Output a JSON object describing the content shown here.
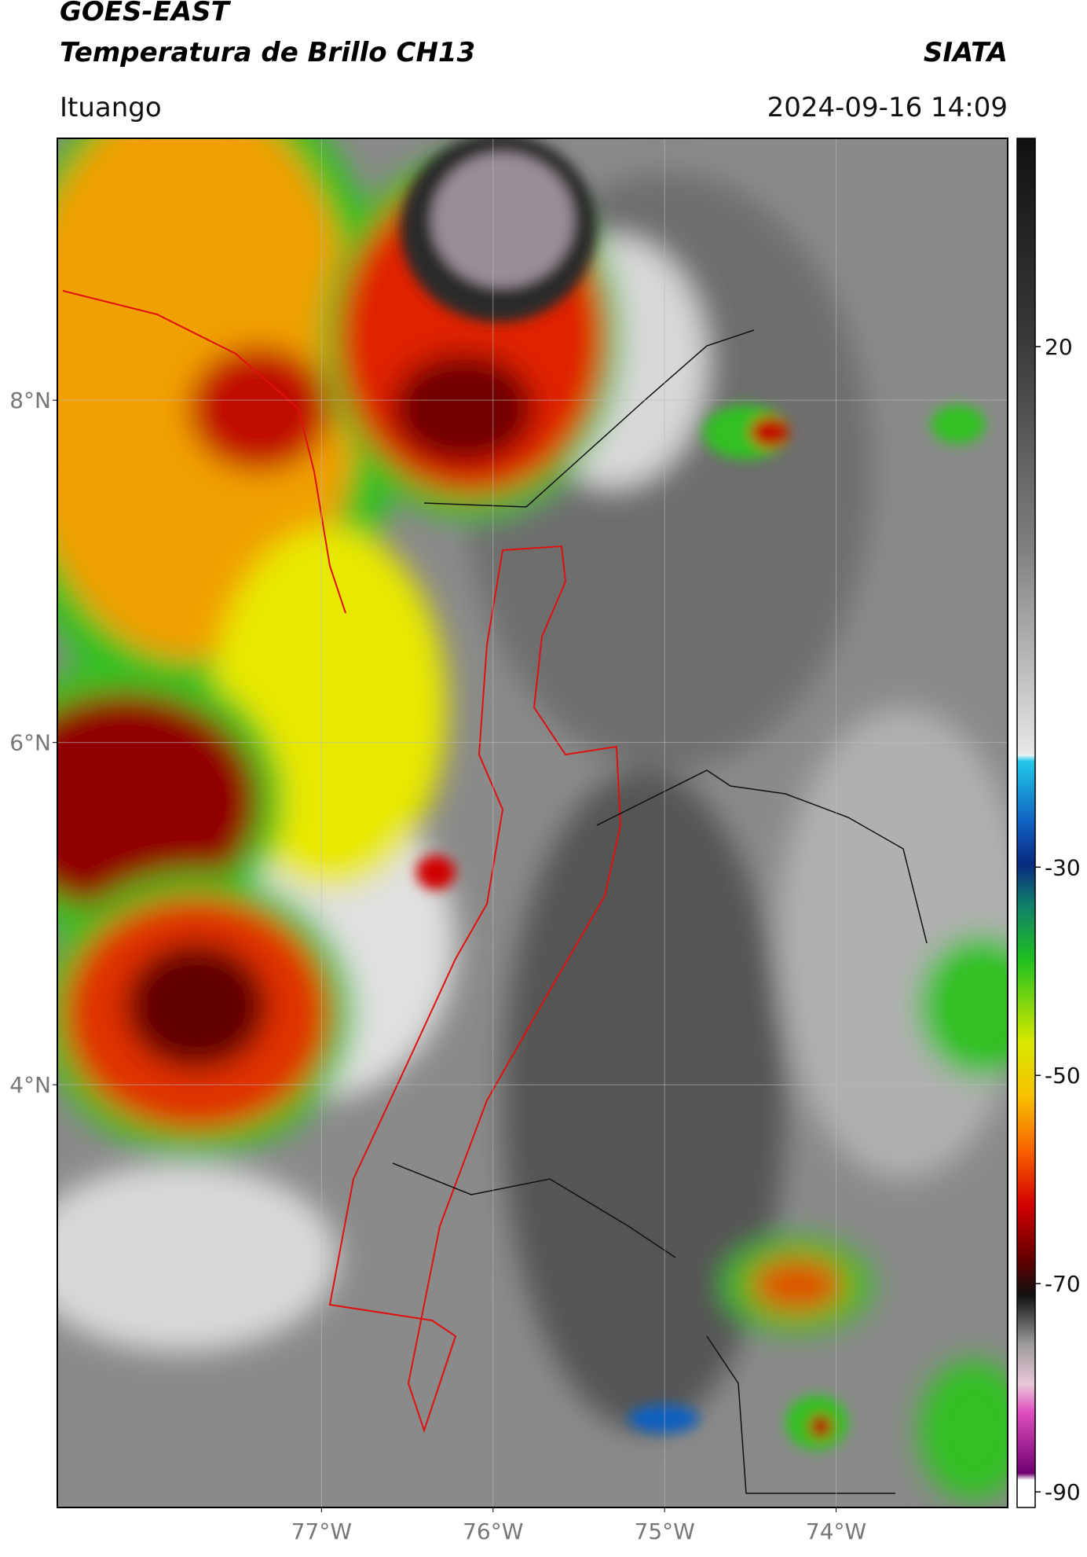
{
  "header": {
    "satellite": "GOES-EAST",
    "product": "Temperatura de Brillo CH13",
    "source": "SIATA",
    "region": "Ituango",
    "datetime": "2024-09-16 14:09"
  },
  "map": {
    "xlim": [
      -78.54,
      -73.0
    ],
    "ylim": [
      1.53,
      9.53
    ],
    "xticks": [
      {
        "value": -77,
        "label": "77°W"
      },
      {
        "value": -76,
        "label": "76°W"
      },
      {
        "value": -75,
        "label": "75°W"
      },
      {
        "value": -74,
        "label": "74°W"
      }
    ],
    "yticks": [
      {
        "value": 8,
        "label": "8°N"
      },
      {
        "value": 6,
        "label": "6°N"
      },
      {
        "value": 4,
        "label": "4°N"
      }
    ],
    "grid": true
  },
  "colorbar": {
    "clim": [
      -91.5,
      40
    ],
    "ticks": [
      20,
      -30,
      -50,
      -70,
      -90
    ]
  }
}
